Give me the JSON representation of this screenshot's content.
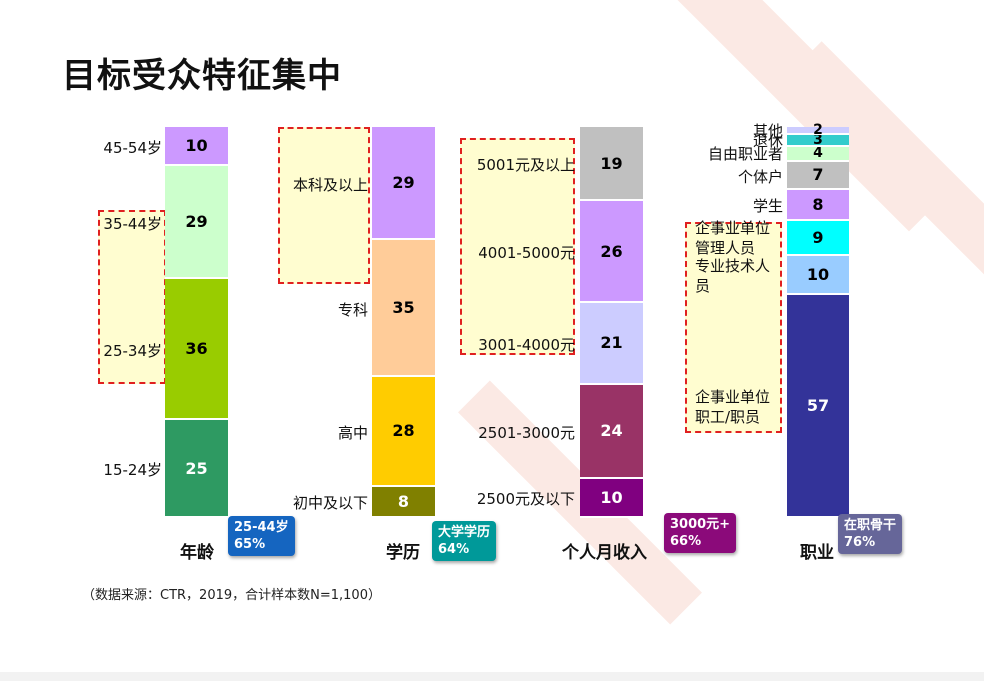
{
  "title": "目标受众特征集中",
  "source_note": "（数据来源：CTR，2019，合计样本数N=1,100）",
  "chart_data": {
    "type": "bar",
    "stacked": true,
    "bars": [
      {
        "category": "年龄",
        "badge": {
          "line1": "25-44岁",
          "line2": "65%",
          "color": "#1565c0"
        },
        "segments": [
          {
            "label": "15-24岁",
            "value": 25,
            "color": "#2e9a62",
            "text_color": "#ffffff"
          },
          {
            "label": "25-34岁",
            "value": 36,
            "color": "#99cc00",
            "text_color": "#000000"
          },
          {
            "label": "35-44岁",
            "value": 29,
            "color": "#ccffcc",
            "text_color": "#000000"
          },
          {
            "label": "45-54岁",
            "value": 10,
            "color": "#cc99ff",
            "text_color": "#000000"
          }
        ]
      },
      {
        "category": "学历",
        "badge": {
          "line1": "大学学历",
          "line2": "64%",
          "color": "#009999"
        },
        "segments": [
          {
            "label": "初中及以下",
            "value": 8,
            "color": "#808000",
            "text_color": "#ffffff"
          },
          {
            "label": "高中",
            "value": 28,
            "color": "#ffcc00",
            "text_color": "#000000"
          },
          {
            "label": "专科",
            "value": 35,
            "color": "#ffcc99",
            "text_color": "#000000"
          },
          {
            "label": "本科及以上",
            "value": 29,
            "color": "#cc99ff",
            "text_color": "#000000"
          }
        ]
      },
      {
        "category": "个人月收入",
        "badge": {
          "line1": "3000元+",
          "line2": "66%",
          "color": "#8b0a7a"
        },
        "segments": [
          {
            "label": "2500元及以下",
            "value": 10,
            "color": "#800080",
            "text_color": "#ffffff"
          },
          {
            "label": "2501-3000元",
            "value": 24,
            "color": "#993366",
            "text_color": "#ffffff"
          },
          {
            "label": "3001-4000元",
            "value": 21,
            "color": "#ccccff",
            "text_color": "#000000"
          },
          {
            "label": "4001-5000元",
            "value": 26,
            "color": "#cc99ff",
            "text_color": "#000000"
          },
          {
            "label": "5001元及以上",
            "value": 19,
            "color": "#c0c0c0",
            "text_color": "#000000"
          }
        ]
      },
      {
        "category": "职业",
        "badge": {
          "line1": "在职骨干",
          "line2": "76%",
          "color": "#666699"
        },
        "segments": [
          {
            "label": "企事业单位职工/职员",
            "value": 57,
            "color": "#333399",
            "text_color": "#ffffff"
          },
          {
            "label": "专业技术人员",
            "value": 10,
            "color": "#99ccff",
            "text_color": "#000000"
          },
          {
            "label": "企事业单位管理人员",
            "value": 9,
            "color": "#00ffff",
            "text_color": "#000000"
          },
          {
            "label": "学生",
            "value": 8,
            "color": "#cc99ff",
            "text_color": "#000000"
          },
          {
            "label": "个体户",
            "value": 7,
            "color": "#c0c0c0",
            "text_color": "#000000"
          },
          {
            "label": "自由职业者",
            "value": 4,
            "color": "#ccffcc",
            "text_color": "#000000"
          },
          {
            "label": "退休",
            "value": 3,
            "color": "#33cccc",
            "text_color": "#000000"
          },
          {
            "label": "其他",
            "value": 2,
            "color": "#ccccff",
            "text_color": "#000000"
          }
        ]
      }
    ]
  }
}
